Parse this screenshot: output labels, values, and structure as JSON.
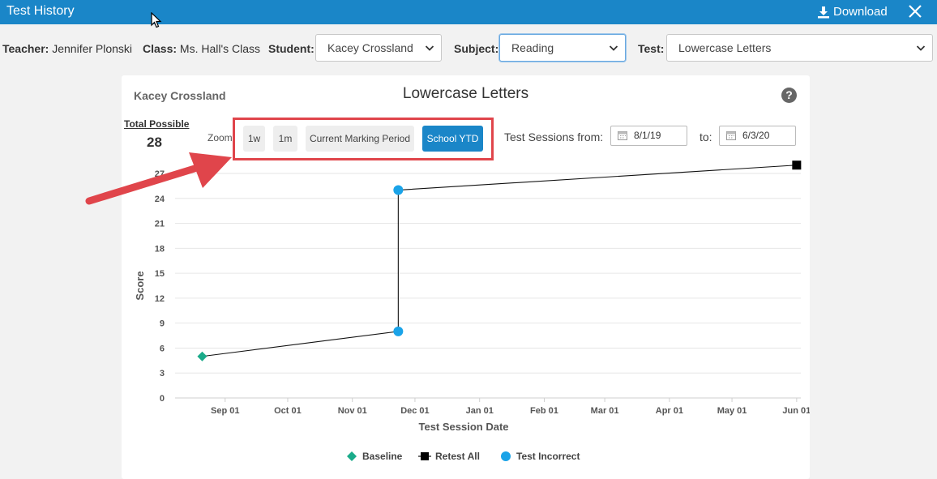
{
  "window": {
    "title": "Test History",
    "download_label": "Download"
  },
  "filters": {
    "teacher_label": "Teacher:",
    "teacher_value": "Jennifer Plonski",
    "class_label": "Class:",
    "class_value": "Ms. Hall's Class",
    "student_label": "Student:",
    "student_value": "Kacey Crossland",
    "subject_label": "Subject:",
    "subject_value": "Reading",
    "test_label": "Test:",
    "test_value": "Lowercase Letters"
  },
  "card": {
    "student_name": "Kacey Crossland",
    "title": "Lowercase Letters",
    "total_possible_label": "Total Possible",
    "total_possible_value": "28",
    "zoom_label": "Zoom",
    "zoom_buttons": [
      "1w",
      "1m",
      "Current Marking Period",
      "School YTD"
    ],
    "zoom_active": "School YTD",
    "sessions_from_label": "Test Sessions from:",
    "from_date": "8/1/19",
    "to_label": "to:",
    "to_date": "6/3/20"
  },
  "colors": {
    "accent": "#1a86c8",
    "baseline": "#1aab8a",
    "retest": "#000000",
    "incorrect": "#1aa3e8",
    "highlight": "#e0454b"
  },
  "chart_data": {
    "type": "line",
    "title": "",
    "xlabel": "Test Session Date",
    "ylabel": "Score",
    "ylim": [
      0,
      27
    ],
    "yticks": [
      0,
      3,
      6,
      9,
      12,
      15,
      18,
      21,
      24,
      27
    ],
    "xticks": [
      "Sep 01",
      "Oct 01",
      "Nov 01",
      "Dec 01",
      "Jan 01",
      "Feb 01",
      "Mar 01",
      "Apr 01",
      "May 01",
      "Jun 01"
    ],
    "xrange": [
      "2019-08-08",
      "2020-06-03"
    ],
    "points": [
      {
        "date": "2019-08-21",
        "score": 5,
        "series": "Baseline"
      },
      {
        "date": "2019-11-23",
        "score": 8,
        "series": "Test Incorrect"
      },
      {
        "date": "2019-11-23",
        "score": 25,
        "series": "Test Incorrect"
      },
      {
        "date": "2020-06-01",
        "score": 28,
        "series": "Retest All"
      }
    ],
    "legend": [
      "Baseline",
      "Retest All",
      "Test Incorrect"
    ],
    "legend_position": "bottom",
    "grid": true
  }
}
